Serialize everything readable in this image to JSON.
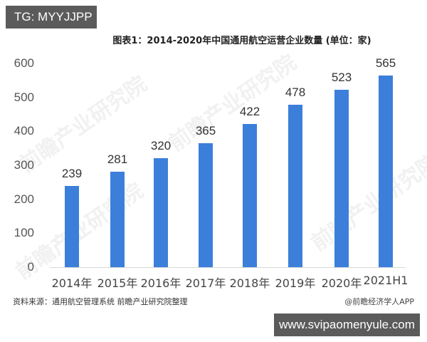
{
  "badges": {
    "top_left": "TG: MYYJJPP",
    "bottom_right": "www.svipaomenyule.com"
  },
  "footer": {
    "source": "资料来源：通用航空管理系统 前瞻产业研究院整理",
    "credit": "@前瞻经济学人APP"
  },
  "watermark": "前瞻产业研究院",
  "colors": {
    "bar": "#3b7fdb",
    "badge_bg": "#5b5b5b"
  },
  "chart_data": {
    "type": "bar",
    "title": "图表1：2014-2020年中国通用航空运营企业数量 (单位：家)",
    "xlabel": "",
    "ylabel": "",
    "categories": [
      "2014年",
      "2015年",
      "2016年",
      "2017年",
      "2018年",
      "2019年",
      "2020年",
      "2021H1"
    ],
    "values": [
      239,
      281,
      320,
      365,
      422,
      478,
      523,
      565
    ],
    "ylim": [
      0,
      600
    ],
    "yticks": [
      0,
      100,
      200,
      300,
      400,
      500,
      600
    ],
    "grid": false,
    "legend": null,
    "data_labels": true
  }
}
